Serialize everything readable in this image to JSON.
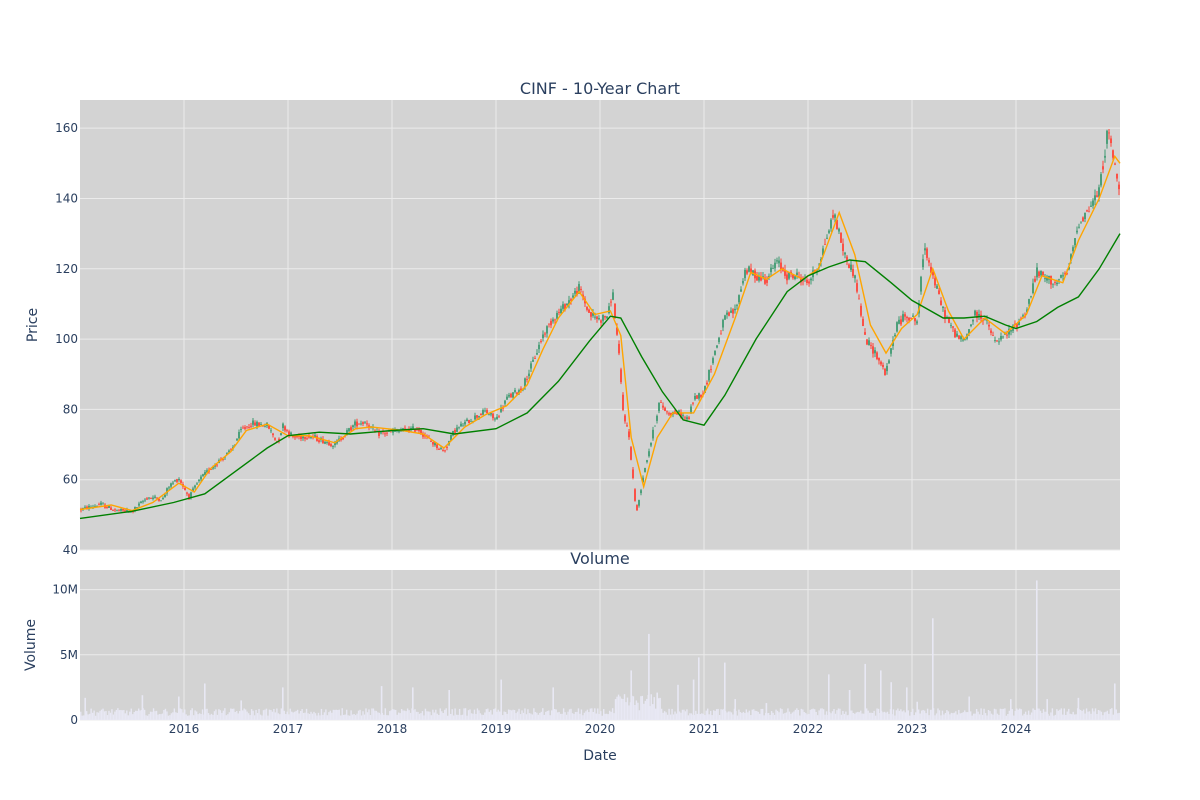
{
  "chart_data": {
    "type": "candlestick",
    "title": "CINF - 10-Year Chart",
    "subplot_title": "Volume",
    "xlabel": "Date",
    "price_panel": {
      "ylabel": "Price",
      "ylim": [
        40,
        168
      ],
      "y_ticks": [
        40,
        60,
        80,
        100,
        120,
        140,
        160
      ],
      "grid": true
    },
    "volume_panel": {
      "ylabel": "Volume",
      "ylim": [
        0,
        11500000
      ],
      "y_ticks": [
        0,
        5000000,
        10000000
      ],
      "y_tick_labels": [
        "0",
        "5M",
        "10M"
      ],
      "grid": true
    },
    "x_range": [
      2015.0,
      2025.0
    ],
    "x_ticks": [
      2016,
      2017,
      2018,
      2019,
      2020,
      2021,
      2022,
      2023,
      2024
    ],
    "x_tick_labels": [
      "2016",
      "2017",
      "2018",
      "2019",
      "2020",
      "2021",
      "2022",
      "2023",
      "2024"
    ],
    "colors": {
      "plot_bg": "#d3d3d3",
      "grid": "#ebebeb",
      "increasing": "#3d9970",
      "decreasing": "#ff4136",
      "ma_short": "#ffa500",
      "ma_long": "#008000",
      "volume": "#e8e8f4",
      "text": "#2a3f5f"
    },
    "price_trend": [
      [
        2015.0,
        51.5
      ],
      [
        2015.2,
        53
      ],
      [
        2015.35,
        51.2
      ],
      [
        2015.5,
        51
      ],
      [
        2015.65,
        55
      ],
      [
        2015.8,
        54.5
      ],
      [
        2015.85,
        58
      ],
      [
        2015.95,
        60.5
      ],
      [
        2016.05,
        55
      ],
      [
        2016.15,
        60
      ],
      [
        2016.3,
        64.5
      ],
      [
        2016.45,
        68
      ],
      [
        2016.55,
        74
      ],
      [
        2016.65,
        76
      ],
      [
        2016.8,
        75.5
      ],
      [
        2016.9,
        70.5
      ],
      [
        2016.95,
        75.5
      ],
      [
        2017.05,
        72
      ],
      [
        2017.2,
        72.5
      ],
      [
        2017.3,
        71.5
      ],
      [
        2017.45,
        70
      ],
      [
        2017.55,
        73
      ],
      [
        2017.65,
        76
      ],
      [
        2017.75,
        76.5
      ],
      [
        2017.85,
        73
      ],
      [
        2018.1,
        74
      ],
      [
        2018.25,
        74.5
      ],
      [
        2018.35,
        71.5
      ],
      [
        2018.5,
        68
      ],
      [
        2018.6,
        74
      ],
      [
        2018.75,
        77
      ],
      [
        2018.9,
        79.5
      ],
      [
        2019.0,
        77
      ],
      [
        2019.1,
        83
      ],
      [
        2019.25,
        86
      ],
      [
        2019.35,
        93
      ],
      [
        2019.45,
        101
      ],
      [
        2019.55,
        106
      ],
      [
        2019.65,
        109
      ],
      [
        2019.8,
        114.5
      ],
      [
        2019.9,
        107
      ],
      [
        2020.0,
        105.5
      ],
      [
        2020.08,
        107
      ],
      [
        2020.12,
        114
      ],
      [
        2020.18,
        96
      ],
      [
        2020.22,
        80
      ],
      [
        2020.28,
        72
      ],
      [
        2020.35,
        50
      ],
      [
        2020.42,
        62
      ],
      [
        2020.5,
        72
      ],
      [
        2020.57,
        82
      ],
      [
        2020.65,
        79
      ],
      [
        2020.75,
        79
      ],
      [
        2020.85,
        77
      ],
      [
        2020.9,
        83
      ],
      [
        2021.0,
        85
      ],
      [
        2021.1,
        96
      ],
      [
        2021.2,
        106
      ],
      [
        2021.3,
        108
      ],
      [
        2021.4,
        120
      ],
      [
        2021.5,
        118
      ],
      [
        2021.6,
        117
      ],
      [
        2021.7,
        122
      ],
      [
        2021.8,
        118
      ],
      [
        2021.9,
        118
      ],
      [
        2022.0,
        116
      ],
      [
        2022.1,
        121
      ],
      [
        2022.25,
        136
      ],
      [
        2022.35,
        124
      ],
      [
        2022.45,
        118
      ],
      [
        2022.55,
        100
      ],
      [
        2022.65,
        96
      ],
      [
        2022.75,
        90
      ],
      [
        2022.85,
        104
      ],
      [
        2022.95,
        107
      ],
      [
        2023.05,
        105
      ],
      [
        2023.12,
        127
      ],
      [
        2023.2,
        118
      ],
      [
        2023.3,
        108
      ],
      [
        2023.4,
        102
      ],
      [
        2023.5,
        99
      ],
      [
        2023.6,
        107
      ],
      [
        2023.7,
        106
      ],
      [
        2023.8,
        99
      ],
      [
        2023.9,
        101
      ],
      [
        2024.0,
        104
      ],
      [
        2024.1,
        108
      ],
      [
        2024.2,
        119
      ],
      [
        2024.3,
        117
      ],
      [
        2024.4,
        116
      ],
      [
        2024.5,
        119
      ],
      [
        2024.6,
        133
      ],
      [
        2024.7,
        137
      ],
      [
        2024.8,
        142
      ],
      [
        2024.88,
        159
      ],
      [
        2024.93,
        153
      ],
      [
        2024.98,
        143
      ]
    ],
    "ma_short": [
      [
        2015.0,
        51.5
      ],
      [
        2015.3,
        52.8
      ],
      [
        2015.5,
        51.2
      ],
      [
        2015.7,
        53.5
      ],
      [
        2015.95,
        59
      ],
      [
        2016.1,
        56.5
      ],
      [
        2016.25,
        63
      ],
      [
        2016.45,
        68
      ],
      [
        2016.6,
        74
      ],
      [
        2016.8,
        75.8
      ],
      [
        2017.0,
        72.5
      ],
      [
        2017.2,
        72.5
      ],
      [
        2017.45,
        70.5
      ],
      [
        2017.65,
        74.5
      ],
      [
        2017.8,
        75
      ],
      [
        2018.1,
        74
      ],
      [
        2018.3,
        73
      ],
      [
        2018.5,
        69
      ],
      [
        2018.7,
        75
      ],
      [
        2018.9,
        78.5
      ],
      [
        2019.1,
        81
      ],
      [
        2019.3,
        87
      ],
      [
        2019.45,
        97
      ],
      [
        2019.6,
        106
      ],
      [
        2019.8,
        113.5
      ],
      [
        2019.95,
        107
      ],
      [
        2020.1,
        108
      ],
      [
        2020.2,
        101
      ],
      [
        2020.3,
        72
      ],
      [
        2020.42,
        58
      ],
      [
        2020.55,
        72
      ],
      [
        2020.7,
        79
      ],
      [
        2020.9,
        79
      ],
      [
        2021.1,
        90
      ],
      [
        2021.3,
        106
      ],
      [
        2021.45,
        119
      ],
      [
        2021.6,
        117
      ],
      [
        2021.75,
        120
      ],
      [
        2021.95,
        117
      ],
      [
        2022.1,
        120
      ],
      [
        2022.3,
        136
      ],
      [
        2022.45,
        124
      ],
      [
        2022.6,
        104
      ],
      [
        2022.75,
        96
      ],
      [
        2022.9,
        103
      ],
      [
        2023.05,
        107
      ],
      [
        2023.2,
        120
      ],
      [
        2023.35,
        108
      ],
      [
        2023.5,
        100
      ],
      [
        2023.7,
        106
      ],
      [
        2023.9,
        101.5
      ],
      [
        2024.1,
        107
      ],
      [
        2024.25,
        118
      ],
      [
        2024.45,
        116
      ],
      [
        2024.6,
        128
      ],
      [
        2024.8,
        140
      ],
      [
        2024.95,
        152
      ],
      [
        2025.0,
        150
      ]
    ],
    "ma_long": [
      [
        2015.0,
        49
      ],
      [
        2015.5,
        51
      ],
      [
        2015.9,
        53.5
      ],
      [
        2016.2,
        56
      ],
      [
        2016.5,
        62.5
      ],
      [
        2016.8,
        69
      ],
      [
        2017.0,
        72.5
      ],
      [
        2017.3,
        73.5
      ],
      [
        2017.6,
        73
      ],
      [
        2018.0,
        74
      ],
      [
        2018.3,
        74.5
      ],
      [
        2018.6,
        73
      ],
      [
        2019.0,
        74.5
      ],
      [
        2019.3,
        79
      ],
      [
        2019.6,
        88
      ],
      [
        2019.9,
        99.5
      ],
      [
        2020.1,
        106.5
      ],
      [
        2020.2,
        106
      ],
      [
        2020.4,
        95
      ],
      [
        2020.6,
        85
      ],
      [
        2020.8,
        77
      ],
      [
        2021.0,
        75.5
      ],
      [
        2021.2,
        84
      ],
      [
        2021.5,
        100
      ],
      [
        2021.8,
        113.5
      ],
      [
        2022.0,
        118
      ],
      [
        2022.2,
        120.5
      ],
      [
        2022.4,
        122.5
      ],
      [
        2022.55,
        122
      ],
      [
        2022.8,
        116
      ],
      [
        2023.0,
        111
      ],
      [
        2023.3,
        106
      ],
      [
        2023.5,
        106
      ],
      [
        2023.7,
        106.5
      ],
      [
        2023.9,
        104
      ],
      [
        2024.0,
        103
      ],
      [
        2024.2,
        105
      ],
      [
        2024.4,
        109
      ],
      [
        2024.6,
        112
      ],
      [
        2024.8,
        120
      ],
      [
        2025.0,
        130
      ]
    ],
    "volume_spikes": [
      [
        2015.05,
        1700000
      ],
      [
        2015.6,
        1900000
      ],
      [
        2015.95,
        1800000
      ],
      [
        2016.2,
        2800000
      ],
      [
        2016.55,
        1500000
      ],
      [
        2016.95,
        2500000
      ],
      [
        2017.9,
        2600000
      ],
      [
        2018.2,
        2500000
      ],
      [
        2018.55,
        2300000
      ],
      [
        2019.05,
        3100000
      ],
      [
        2019.55,
        2500000
      ],
      [
        2020.15,
        1600000
      ],
      [
        2020.3,
        3800000
      ],
      [
        2020.47,
        6600000
      ],
      [
        2020.55,
        2100000
      ],
      [
        2020.75,
        2700000
      ],
      [
        2020.9,
        3100000
      ],
      [
        2020.95,
        4800000
      ],
      [
        2021.2,
        4400000
      ],
      [
        2021.3,
        1600000
      ],
      [
        2021.6,
        1300000
      ],
      [
        2022.2,
        3500000
      ],
      [
        2022.4,
        2300000
      ],
      [
        2022.55,
        4300000
      ],
      [
        2022.7,
        3800000
      ],
      [
        2022.8,
        2900000
      ],
      [
        2022.95,
        2500000
      ],
      [
        2023.05,
        1400000
      ],
      [
        2023.2,
        7800000
      ],
      [
        2023.55,
        1800000
      ],
      [
        2023.95,
        1600000
      ],
      [
        2024.2,
        10700000
      ],
      [
        2024.3,
        1600000
      ],
      [
        2024.6,
        1700000
      ],
      [
        2024.95,
        2800000
      ]
    ],
    "volume_baseline": 650000
  }
}
